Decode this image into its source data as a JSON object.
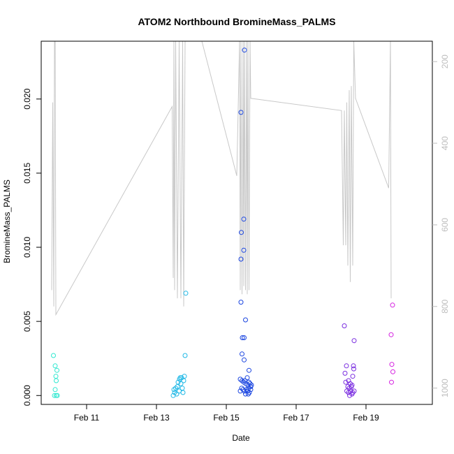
{
  "chart_data": {
    "type": "scatter",
    "title": "ATOM2 Northbound BromineMass_PALMS",
    "xlabel": "Date",
    "ylabel": "BromineMass_PALMS",
    "x_tick_labels": [
      "Feb 11",
      "Feb 13",
      "Feb 15",
      "Feb 17",
      "Feb 19"
    ],
    "x_tick_days": [
      11,
      13,
      15,
      17,
      19
    ],
    "xlim_days": [
      9.7,
      20.9
    ],
    "ylim": [
      -0.0006,
      0.0239
    ],
    "y_ticks": [
      0.0,
      0.005,
      0.01,
      0.015,
      0.02
    ],
    "y_tick_labels": [
      "0.000",
      "0.005",
      "0.010",
      "0.015",
      "0.020"
    ],
    "right_axis": {
      "color": "#bdbdbd",
      "ylim": [
        1040,
        150
      ],
      "ticks": [
        200,
        400,
        600,
        800,
        1000
      ],
      "tick_labels": [
        "200",
        "400",
        "600",
        "800",
        "1000"
      ]
    },
    "grid": false,
    "points": [
      {
        "x": 10.05,
        "y": 0.0027,
        "color": "#2fe8d0"
      },
      {
        "x": 10.1,
        "y": 0.002,
        "color": "#2fe8d0"
      },
      {
        "x": 10.15,
        "y": 0.0017,
        "color": "#2fe8d0"
      },
      {
        "x": 10.12,
        "y": 0.0013,
        "color": "#2fe8d0"
      },
      {
        "x": 10.13,
        "y": 0.001,
        "color": "#2fe8d0"
      },
      {
        "x": 10.1,
        "y": 0.0004,
        "color": "#2fe8d0"
      },
      {
        "x": 10.08,
        "y": 0.0,
        "color": "#2fe8d0"
      },
      {
        "x": 10.13,
        "y": 0.0,
        "color": "#2fe8d0"
      },
      {
        "x": 10.16,
        "y": 0.0,
        "color": "#2fe8d0"
      },
      {
        "x": 13.48,
        "y": 0.0,
        "color": "#1fb8e6"
      },
      {
        "x": 13.5,
        "y": 0.0004,
        "color": "#1fb8e6"
      },
      {
        "x": 13.52,
        "y": 0.0002,
        "color": "#1fb8e6"
      },
      {
        "x": 13.55,
        "y": 0.0005,
        "color": "#1fb8e6"
      },
      {
        "x": 13.58,
        "y": 0.0001,
        "color": "#1fb8e6"
      },
      {
        "x": 13.6,
        "y": 0.0006,
        "color": "#1fb8e6"
      },
      {
        "x": 13.62,
        "y": 0.0009,
        "color": "#1fb8e6"
      },
      {
        "x": 13.65,
        "y": 0.0003,
        "color": "#1fb8e6"
      },
      {
        "x": 13.66,
        "y": 0.0011,
        "color": "#1fb8e6"
      },
      {
        "x": 13.68,
        "y": 0.0012,
        "color": "#1fb8e6"
      },
      {
        "x": 13.7,
        "y": 0.0008,
        "color": "#1fb8e6"
      },
      {
        "x": 13.72,
        "y": 0.0012,
        "color": "#1fb8e6"
      },
      {
        "x": 13.74,
        "y": 0.0005,
        "color": "#1fb8e6"
      },
      {
        "x": 13.76,
        "y": 0.0002,
        "color": "#1fb8e6"
      },
      {
        "x": 13.78,
        "y": 0.001,
        "color": "#1fb8e6"
      },
      {
        "x": 13.8,
        "y": 0.0013,
        "color": "#1fb8e6"
      },
      {
        "x": 13.82,
        "y": 0.0027,
        "color": "#1fb8e6"
      },
      {
        "x": 13.84,
        "y": 0.0069,
        "color": "#1fb8e6"
      },
      {
        "x": 15.52,
        "y": 0.0233,
        "color": "#1a45e0"
      },
      {
        "x": 15.42,
        "y": 0.0191,
        "color": "#1a45e0"
      },
      {
        "x": 15.5,
        "y": 0.0119,
        "color": "#1a45e0"
      },
      {
        "x": 15.43,
        "y": 0.011,
        "color": "#1a45e0"
      },
      {
        "x": 15.5,
        "y": 0.0098,
        "color": "#1a45e0"
      },
      {
        "x": 15.42,
        "y": 0.0092,
        "color": "#1a45e0"
      },
      {
        "x": 15.42,
        "y": 0.0063,
        "color": "#1a45e0"
      },
      {
        "x": 15.55,
        "y": 0.0051,
        "color": "#1a45e0"
      },
      {
        "x": 15.46,
        "y": 0.0039,
        "color": "#1a45e0"
      },
      {
        "x": 15.51,
        "y": 0.0039,
        "color": "#1a45e0"
      },
      {
        "x": 15.45,
        "y": 0.0028,
        "color": "#1a45e0"
      },
      {
        "x": 15.51,
        "y": 0.0024,
        "color": "#1a45e0"
      },
      {
        "x": 15.65,
        "y": 0.0017,
        "color": "#1a45e0"
      },
      {
        "x": 15.4,
        "y": 0.0011,
        "color": "#1a45e0"
      },
      {
        "x": 15.45,
        "y": 0.001,
        "color": "#1a45e0"
      },
      {
        "x": 15.5,
        "y": 0.0009,
        "color": "#1a45e0"
      },
      {
        "x": 15.53,
        "y": 0.001,
        "color": "#1a45e0"
      },
      {
        "x": 15.56,
        "y": 0.0008,
        "color": "#1a45e0"
      },
      {
        "x": 15.6,
        "y": 0.0012,
        "color": "#1a45e0"
      },
      {
        "x": 15.62,
        "y": 0.0007,
        "color": "#1a45e0"
      },
      {
        "x": 15.65,
        "y": 0.0009,
        "color": "#1a45e0"
      },
      {
        "x": 15.68,
        "y": 0.0008,
        "color": "#1a45e0"
      },
      {
        "x": 15.7,
        "y": 0.0006,
        "color": "#1a45e0"
      },
      {
        "x": 15.72,
        "y": 0.0007,
        "color": "#1a45e0"
      },
      {
        "x": 15.44,
        "y": 0.0005,
        "color": "#1a45e0"
      },
      {
        "x": 15.48,
        "y": 0.0004,
        "color": "#1a45e0"
      },
      {
        "x": 15.52,
        "y": 0.0003,
        "color": "#1a45e0"
      },
      {
        "x": 15.58,
        "y": 0.0004,
        "color": "#1a45e0"
      },
      {
        "x": 15.61,
        "y": 0.0003,
        "color": "#1a45e0"
      },
      {
        "x": 15.64,
        "y": 0.0005,
        "color": "#1a45e0"
      },
      {
        "x": 15.66,
        "y": 0.0002,
        "color": "#1a45e0"
      },
      {
        "x": 15.7,
        "y": 0.0004,
        "color": "#1a45e0"
      },
      {
        "x": 15.4,
        "y": 0.0003,
        "color": "#1a45e0"
      },
      {
        "x": 15.55,
        "y": 0.0001,
        "color": "#1a45e0"
      },
      {
        "x": 15.63,
        "y": 0.0001,
        "color": "#1a45e0"
      },
      {
        "x": 18.38,
        "y": 0.0047,
        "color": "#7a2de0"
      },
      {
        "x": 18.66,
        "y": 0.0037,
        "color": "#7a2de0"
      },
      {
        "x": 18.44,
        "y": 0.002,
        "color": "#7a2de0"
      },
      {
        "x": 18.64,
        "y": 0.002,
        "color": "#7a2de0"
      },
      {
        "x": 18.65,
        "y": 0.0018,
        "color": "#7a2de0"
      },
      {
        "x": 18.4,
        "y": 0.0015,
        "color": "#7a2de0"
      },
      {
        "x": 18.62,
        "y": 0.0013,
        "color": "#7a2de0"
      },
      {
        "x": 18.5,
        "y": 0.001,
        "color": "#7a2de0"
      },
      {
        "x": 18.42,
        "y": 0.0009,
        "color": "#7a2de0"
      },
      {
        "x": 18.55,
        "y": 0.0008,
        "color": "#7a2de0"
      },
      {
        "x": 18.6,
        "y": 0.0007,
        "color": "#7a2de0"
      },
      {
        "x": 18.48,
        "y": 0.0006,
        "color": "#7a2de0"
      },
      {
        "x": 18.52,
        "y": 0.0005,
        "color": "#7a2de0"
      },
      {
        "x": 18.58,
        "y": 0.0006,
        "color": "#7a2de0"
      },
      {
        "x": 18.45,
        "y": 0.0003,
        "color": "#7a2de0"
      },
      {
        "x": 18.5,
        "y": 0.0002,
        "color": "#7a2de0"
      },
      {
        "x": 18.56,
        "y": 0.0003,
        "color": "#7a2de0"
      },
      {
        "x": 18.62,
        "y": 0.0002,
        "color": "#7a2de0"
      },
      {
        "x": 18.66,
        "y": 0.0003,
        "color": "#7a2de0"
      },
      {
        "x": 18.53,
        "y": 0.0,
        "color": "#7a2de0"
      },
      {
        "x": 18.6,
        "y": 0.0001,
        "color": "#7a2de0"
      },
      {
        "x": 19.76,
        "y": 0.0061,
        "color": "#d41fe0"
      },
      {
        "x": 19.72,
        "y": 0.0041,
        "color": "#d41fe0"
      },
      {
        "x": 19.74,
        "y": 0.0021,
        "color": "#d41fe0"
      },
      {
        "x": 19.77,
        "y": 0.0016,
        "color": "#d41fe0"
      },
      {
        "x": 19.73,
        "y": 0.0009,
        "color": "#d41fe0"
      }
    ],
    "right_series": {
      "color": "#c8c8c8",
      "points": [
        [
          10.0,
          760
        ],
        [
          10.03,
          300
        ],
        [
          10.06,
          800
        ],
        [
          10.08,
          150
        ],
        [
          10.1,
          150
        ],
        [
          10.12,
          820
        ],
        [
          13.45,
          310
        ],
        [
          13.48,
          730
        ],
        [
          13.5,
          150
        ],
        [
          13.52,
          760
        ],
        [
          13.55,
          150
        ],
        [
          13.6,
          780
        ],
        [
          13.65,
          150
        ],
        [
          13.7,
          780
        ],
        [
          13.75,
          150
        ],
        [
          13.78,
          800
        ],
        [
          13.82,
          150
        ],
        [
          14.3,
          150
        ],
        [
          15.3,
          480
        ],
        [
          15.38,
          150
        ],
        [
          15.4,
          760
        ],
        [
          15.42,
          150
        ],
        [
          15.45,
          770
        ],
        [
          15.48,
          150
        ],
        [
          15.5,
          750
        ],
        [
          15.52,
          150
        ],
        [
          15.55,
          760
        ],
        [
          15.58,
          150
        ],
        [
          15.6,
          770
        ],
        [
          15.62,
          150
        ],
        [
          15.65,
          760
        ],
        [
          15.68,
          150
        ],
        [
          15.7,
          290
        ],
        [
          18.3,
          320
        ],
        [
          18.35,
          650
        ],
        [
          18.38,
          320
        ],
        [
          18.42,
          650
        ],
        [
          18.45,
          300
        ],
        [
          18.48,
          700
        ],
        [
          18.52,
          270
        ],
        [
          18.55,
          740
        ],
        [
          18.58,
          260
        ],
        [
          18.62,
          700
        ],
        [
          18.65,
          150
        ],
        [
          18.7,
          290
        ],
        [
          19.65,
          510
        ],
        [
          19.7,
          150
        ],
        [
          19.72,
          780
        ]
      ]
    }
  }
}
